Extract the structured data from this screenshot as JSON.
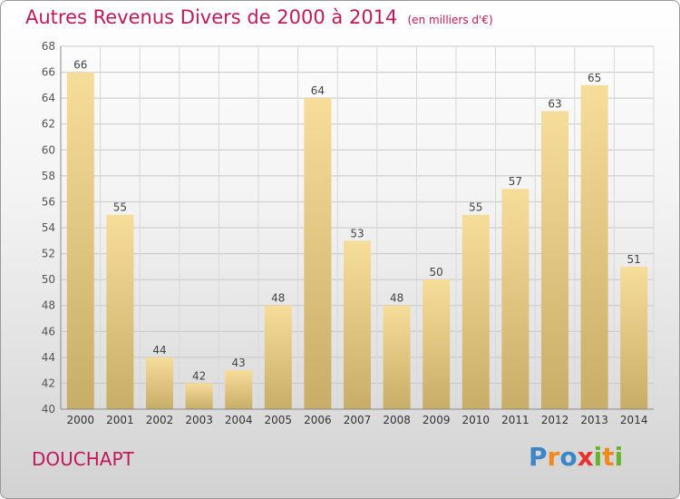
{
  "chart_data": {
    "type": "bar",
    "title": "Autres Revenus Divers de 2000 à 2014",
    "subtitle": "(en milliers d'€)",
    "xlabel": "",
    "ylabel": "",
    "categories": [
      "2000",
      "2001",
      "2002",
      "2003",
      "2004",
      "2005",
      "2006",
      "2007",
      "2008",
      "2009",
      "2010",
      "2011",
      "2012",
      "2013",
      "2014"
    ],
    "values": [
      66,
      55,
      44,
      42,
      43,
      48,
      64,
      53,
      48,
      50,
      55,
      57,
      63,
      65,
      51
    ],
    "ylim": [
      40,
      68
    ],
    "yticks": [
      40,
      42,
      44,
      46,
      48,
      50,
      52,
      54,
      56,
      58,
      60,
      62,
      64,
      66,
      68
    ],
    "grid": true,
    "legend": "none",
    "bar_color_top": "#f7dd9a",
    "bar_color_bottom": "#c8ad68",
    "title_color": "#c0195a"
  },
  "footer": {
    "commune": "DOUCHAPT",
    "logo": {
      "letters": [
        {
          "char": "P",
          "color": "#3a86c8"
        },
        {
          "char": "r",
          "color": "#f08a1c"
        },
        {
          "char": "o",
          "color": "#3a86c8"
        },
        {
          "char": "x",
          "color": "#e8322d"
        },
        {
          "char": "i",
          "color": "#6ab42d"
        },
        {
          "char": "t",
          "color": "#f08a1c"
        },
        {
          "char": "i",
          "color": "#6ab42d"
        }
      ]
    }
  }
}
